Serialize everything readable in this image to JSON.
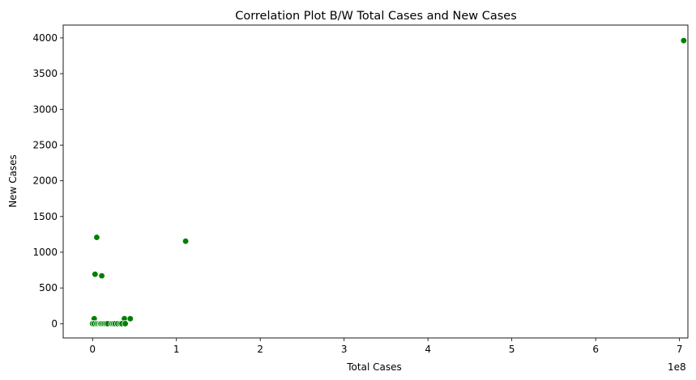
{
  "chart_data": {
    "type": "scatter",
    "title": "Correlation Plot B/W Total Cases and New Cases",
    "xlabel": "Total Cases",
    "ylabel": "New Cases",
    "x_offset_label": "1e8",
    "xlim": [
      -0.35,
      7.1
    ],
    "ylim": [
      -200,
      4180
    ],
    "x_ticks": [
      0,
      1,
      2,
      3,
      4,
      5,
      6,
      7
    ],
    "x_tick_labels": [
      "0",
      "1",
      "2",
      "3",
      "4",
      "5",
      "6",
      "7"
    ],
    "y_ticks": [
      0,
      500,
      1000,
      1500,
      2000,
      2500,
      3000,
      3500,
      4000
    ],
    "y_tick_labels": [
      "0",
      "500",
      "1000",
      "1500",
      "2000",
      "2500",
      "3000",
      "3500",
      "4000"
    ],
    "grid": false,
    "marker_color": "#008000",
    "marker_edge_color": "#ffffff",
    "x_unit_note": "x values expressed in units of 1e8",
    "points": [
      {
        "x": 7.05,
        "y": 3963
      },
      {
        "x": 1.11,
        "y": 1155
      },
      {
        "x": 0.05,
        "y": 1208
      },
      {
        "x": 0.03,
        "y": 692
      },
      {
        "x": 0.11,
        "y": 670
      },
      {
        "x": 0.02,
        "y": 70
      },
      {
        "x": 0.38,
        "y": 70
      },
      {
        "x": 0.45,
        "y": 70
      },
      {
        "x": 0.0,
        "y": 0
      },
      {
        "x": 0.02,
        "y": 0
      },
      {
        "x": 0.05,
        "y": 0
      },
      {
        "x": 0.07,
        "y": 0
      },
      {
        "x": 0.09,
        "y": 0
      },
      {
        "x": 0.1,
        "y": 0
      },
      {
        "x": 0.12,
        "y": 0
      },
      {
        "x": 0.14,
        "y": 0
      },
      {
        "x": 0.16,
        "y": 0
      },
      {
        "x": 0.18,
        "y": 0
      },
      {
        "x": 0.23,
        "y": 0
      },
      {
        "x": 0.25,
        "y": 0
      },
      {
        "x": 0.27,
        "y": 0
      },
      {
        "x": 0.3,
        "y": 0
      },
      {
        "x": 0.33,
        "y": 0
      },
      {
        "x": 0.35,
        "y": 0
      },
      {
        "x": 0.39,
        "y": 0
      }
    ]
  }
}
